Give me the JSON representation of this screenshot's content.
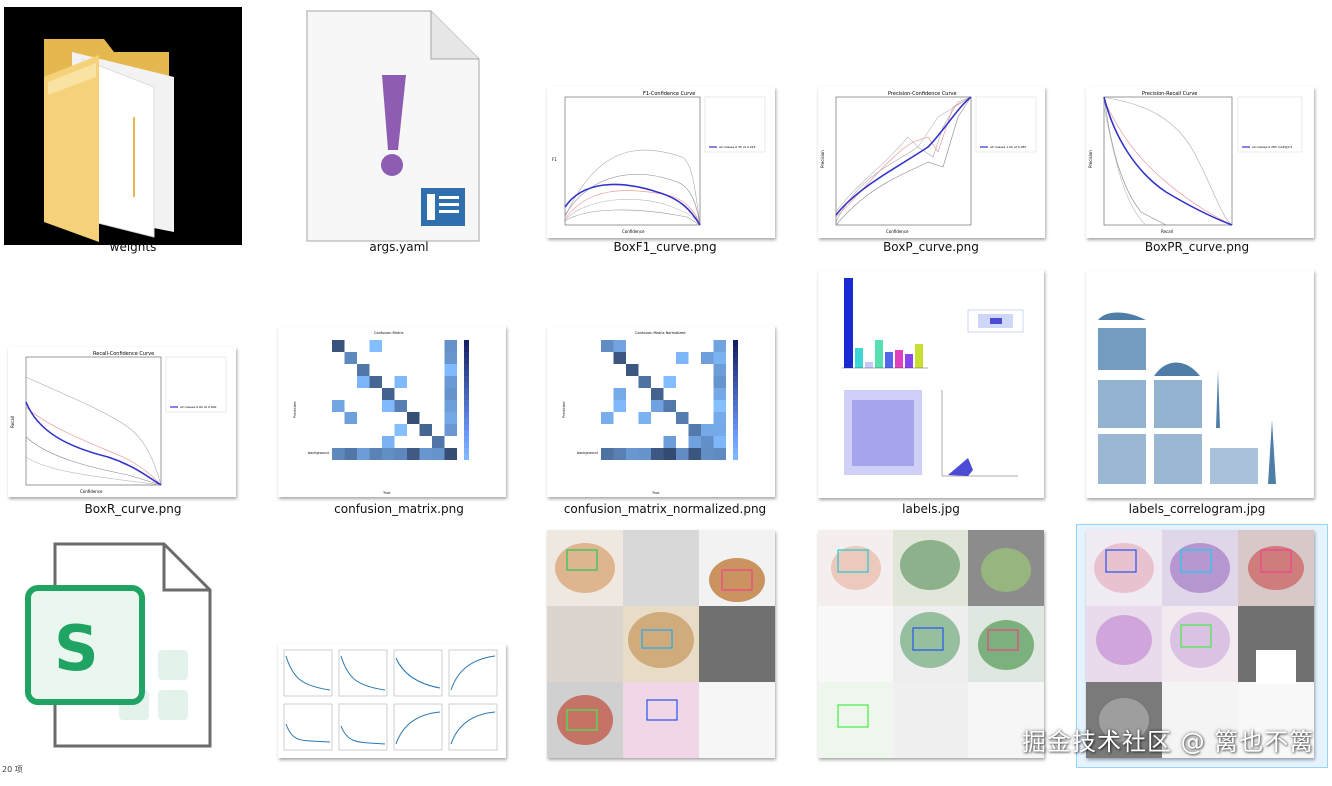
{
  "files": [
    {
      "name": "weights",
      "icon": "folder-icon"
    },
    {
      "name": "args.yaml",
      "icon": "yaml-file-icon"
    },
    {
      "name": "BoxF1_curve.png",
      "icon": "image-thumbnail"
    },
    {
      "name": "BoxP_curve.png",
      "icon": "image-thumbnail"
    },
    {
      "name": "BoxPR_curve.png",
      "icon": "image-thumbnail"
    },
    {
      "name": "BoxR_curve.png",
      "icon": "image-thumbnail"
    },
    {
      "name": "confusion_matrix.png",
      "icon": "image-thumbnail"
    },
    {
      "name": "confusion_matrix_normalized.png",
      "icon": "image-thumbnail"
    },
    {
      "name": "labels.jpg",
      "icon": "image-thumbnail"
    },
    {
      "name": "labels_correlogram.jpg",
      "icon": "image-thumbnail"
    }
  ],
  "thumb_titles": {
    "f1": "F1-Confidence Curve",
    "p": "Precision-Confidence Curve",
    "pr": "Precision-Recall Curve",
    "r": "Recall-Confidence Curve",
    "cm": "Confusion Matrix",
    "cmn": "Confusion Matrix Normalized"
  },
  "thumb_legend": {
    "f1": "all classes 0.35 at 0.223",
    "p": "all classes 1.00 at 0.987",
    "pr": "all classes 0.285 mAP@0.5",
    "r": "all classes 0.60 at 0.000"
  },
  "axis_labels": {
    "confidence": "Confidence",
    "recall": "Recall",
    "f1": "F1",
    "precision": "Precision",
    "true": "True",
    "predicted": "Predicted",
    "background": "background"
  },
  "watermark": "掘金技术社区 @ 篱也不篱",
  "status_text": "20 项",
  "colors": {
    "selection_bg": "#e5f3ff",
    "selection_border": "#99d1ff",
    "folder": "#f5d27a",
    "yaml_exclaim": "#8e5db3",
    "yaml_badge": "#2f6fad",
    "sheet_green": "#1fa463",
    "curve_main": "#3333cc"
  }
}
